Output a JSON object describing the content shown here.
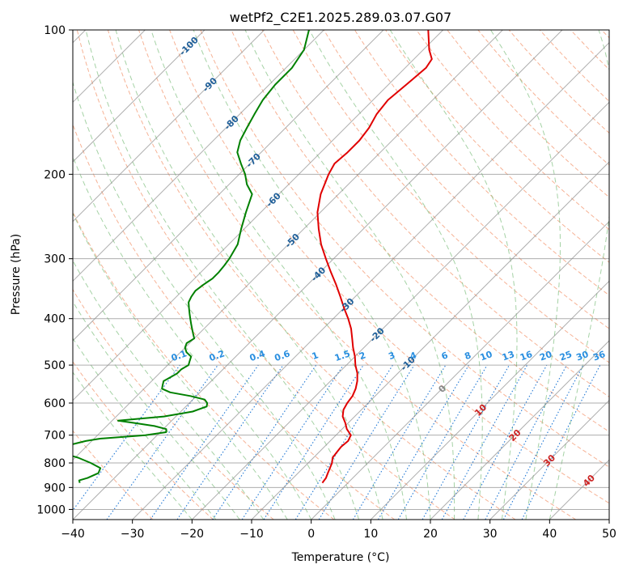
{
  "chart_data": {
    "type": "line",
    "title": "wetPf2_C2E1.2025.289.03.07.G07",
    "xlabel": "Temperature (°C)",
    "ylabel": "Pressure (hPa)",
    "xlim": [
      -40,
      50
    ],
    "ylim": [
      1050,
      100
    ],
    "y_scale": "log",
    "x_ticks": [
      -40,
      -30,
      -20,
      -10,
      0,
      10,
      20,
      30,
      40,
      50
    ],
    "y_ticks": [
      100,
      200,
      300,
      400,
      500,
      600,
      700,
      800,
      900,
      1000
    ],
    "grid": true,
    "colors": {
      "temperature": "#e00000",
      "dewpoint": "#008000",
      "isotherm": "#8c8c8c",
      "dry_adiabat": "#f4a582",
      "moist_adiabat": "#7fbf7f",
      "mixing_ratio": "#1f77d4",
      "isotherm_label": "#1f5f99",
      "dry_label": "#cc2222",
      "mixing_label": "#2a8fe0"
    },
    "series": [
      {
        "key": "temperature",
        "points": [
          [
            -4.3,
            880
          ],
          [
            -4.5,
            860
          ],
          [
            -5.0,
            840
          ],
          [
            -5.5,
            820
          ],
          [
            -6.0,
            800
          ],
          [
            -6.8,
            780
          ],
          [
            -7.0,
            760
          ],
          [
            -7.2,
            740
          ],
          [
            -7.0,
            720
          ],
          [
            -7.5,
            700
          ],
          [
            -9.2,
            680
          ],
          [
            -10.5,
            660
          ],
          [
            -12.0,
            640
          ],
          [
            -13.0,
            620
          ],
          [
            -13.5,
            600
          ],
          [
            -13.8,
            580
          ],
          [
            -14.5,
            560
          ],
          [
            -15.5,
            540
          ],
          [
            -16.8,
            520
          ],
          [
            -18.5,
            500
          ],
          [
            -20.0,
            480
          ],
          [
            -21.8,
            460
          ],
          [
            -23.5,
            440
          ],
          [
            -25.3,
            420
          ],
          [
            -27.5,
            400
          ],
          [
            -30.0,
            380
          ],
          [
            -32.5,
            360
          ],
          [
            -35.2,
            340
          ],
          [
            -38.2,
            320
          ],
          [
            -41.3,
            300
          ],
          [
            -44.5,
            280
          ],
          [
            -47.5,
            260
          ],
          [
            -50.5,
            240
          ],
          [
            -53.0,
            220
          ],
          [
            -55.0,
            200
          ],
          [
            -55.8,
            190
          ],
          [
            -55.5,
            180
          ],
          [
            -55.5,
            170
          ],
          [
            -56.0,
            160
          ],
          [
            -57.0,
            150
          ],
          [
            -57.5,
            140
          ],
          [
            -57.0,
            130
          ],
          [
            -56.5,
            120
          ],
          [
            -57.0,
            115
          ],
          [
            -59.0,
            110
          ],
          [
            -62.5,
            100
          ]
        ]
      },
      {
        "key": "dewpoint",
        "points": [
          [
            -45.0,
            880
          ],
          [
            -45.5,
            870
          ],
          [
            -44.5,
            860
          ],
          [
            -43.5,
            840
          ],
          [
            -44.0,
            820
          ],
          [
            -46.5,
            800
          ],
          [
            -49.5,
            780
          ],
          [
            -51.5,
            770
          ],
          [
            -55.0,
            765
          ],
          [
            -53.5,
            760
          ],
          [
            -53.0,
            750
          ],
          [
            -55.0,
            740
          ],
          [
            -52.5,
            730
          ],
          [
            -51.0,
            720
          ],
          [
            -49.0,
            712
          ],
          [
            -42.0,
            700
          ],
          [
            -39.0,
            690
          ],
          [
            -39.5,
            680
          ],
          [
            -42.0,
            670
          ],
          [
            -46.0,
            660
          ],
          [
            -49.0,
            653
          ],
          [
            -42.0,
            640
          ],
          [
            -38.0,
            625
          ],
          [
            -36.5,
            610
          ],
          [
            -37.0,
            600
          ],
          [
            -38.0,
            590
          ],
          [
            -41.0,
            580
          ],
          [
            -45.0,
            570
          ],
          [
            -47.0,
            560
          ],
          [
            -47.5,
            550
          ],
          [
            -48.0,
            540
          ],
          [
            -47.5,
            530
          ],
          [
            -47.0,
            520
          ],
          [
            -47.0,
            510
          ],
          [
            -46.5,
            500
          ],
          [
            -47.0,
            490
          ],
          [
            -47.5,
            480
          ],
          [
            -49.0,
            470
          ],
          [
            -50.0,
            460
          ],
          [
            -50.5,
            450
          ],
          [
            -50.0,
            440
          ],
          [
            -51.0,
            430
          ],
          [
            -52.0,
            420
          ],
          [
            -53.0,
            410
          ],
          [
            -54.0,
            400
          ],
          [
            -55.0,
            390
          ],
          [
            -56.0,
            380
          ],
          [
            -57.0,
            370
          ],
          [
            -57.5,
            360
          ],
          [
            -57.8,
            350
          ],
          [
            -57.5,
            340
          ],
          [
            -57.0,
            330
          ],
          [
            -57.0,
            320
          ],
          [
            -57.2,
            310
          ],
          [
            -57.5,
            300
          ],
          [
            -58.5,
            280
          ],
          [
            -60.5,
            260
          ],
          [
            -62.5,
            240
          ],
          [
            -64.5,
            220
          ],
          [
            -67.0,
            210
          ],
          [
            -69.0,
            200
          ],
          [
            -71.5,
            190
          ],
          [
            -74.0,
            180
          ],
          [
            -75.5,
            170
          ],
          [
            -76.5,
            160
          ],
          [
            -77.5,
            150
          ],
          [
            -78.5,
            140
          ],
          [
            -79.0,
            130
          ],
          [
            -79.0,
            120
          ],
          [
            -80.0,
            110
          ],
          [
            -82.5,
            100
          ]
        ]
      }
    ],
    "isotherm_labels": [
      -100,
      -90,
      -80,
      -70,
      -60,
      -50,
      -40,
      -30,
      -20,
      -10,
      0
    ],
    "dry_adiabat_labels": [
      10,
      20,
      30,
      40
    ],
    "mixing_ratio_labels": [
      "0.1",
      "0.2",
      "0.4",
      "0.6",
      "1",
      "1.5",
      "2",
      "3",
      "4",
      "6",
      "8",
      "10",
      "13",
      "16",
      "20",
      "25",
      "30",
      "36"
    ]
  }
}
